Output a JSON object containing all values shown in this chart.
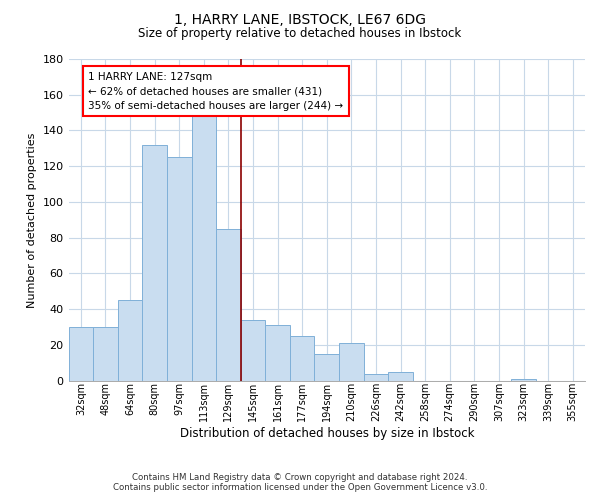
{
  "title": "1, HARRY LANE, IBSTOCK, LE67 6DG",
  "subtitle": "Size of property relative to detached houses in Ibstock",
  "xlabel": "Distribution of detached houses by size in Ibstock",
  "ylabel": "Number of detached properties",
  "bar_labels": [
    "32sqm",
    "48sqm",
    "64sqm",
    "80sqm",
    "97sqm",
    "113sqm",
    "129sqm",
    "145sqm",
    "161sqm",
    "177sqm",
    "194sqm",
    "210sqm",
    "226sqm",
    "242sqm",
    "258sqm",
    "274sqm",
    "290sqm",
    "307sqm",
    "323sqm",
    "339sqm",
    "355sqm"
  ],
  "bar_values": [
    30,
    30,
    45,
    132,
    125,
    148,
    85,
    34,
    31,
    25,
    15,
    21,
    4,
    5,
    0,
    0,
    0,
    0,
    1,
    0,
    0
  ],
  "bar_color": "#c9ddf0",
  "bar_edge_color": "#7fb0d8",
  "ylim": [
    0,
    180
  ],
  "yticks": [
    0,
    20,
    40,
    60,
    80,
    100,
    120,
    140,
    160,
    180
  ],
  "marker_x_label": "129sqm",
  "annotation_title": "1 HARRY LANE: 127sqm",
  "annotation_line1": "← 62% of detached houses are smaller (431)",
  "annotation_line2": "35% of semi-detached houses are larger (244) →",
  "footer_line1": "Contains HM Land Registry data © Crown copyright and database right 2024.",
  "footer_line2": "Contains public sector information licensed under the Open Government Licence v3.0.",
  "bg_color": "#ffffff",
  "grid_color": "#c8d8e8"
}
